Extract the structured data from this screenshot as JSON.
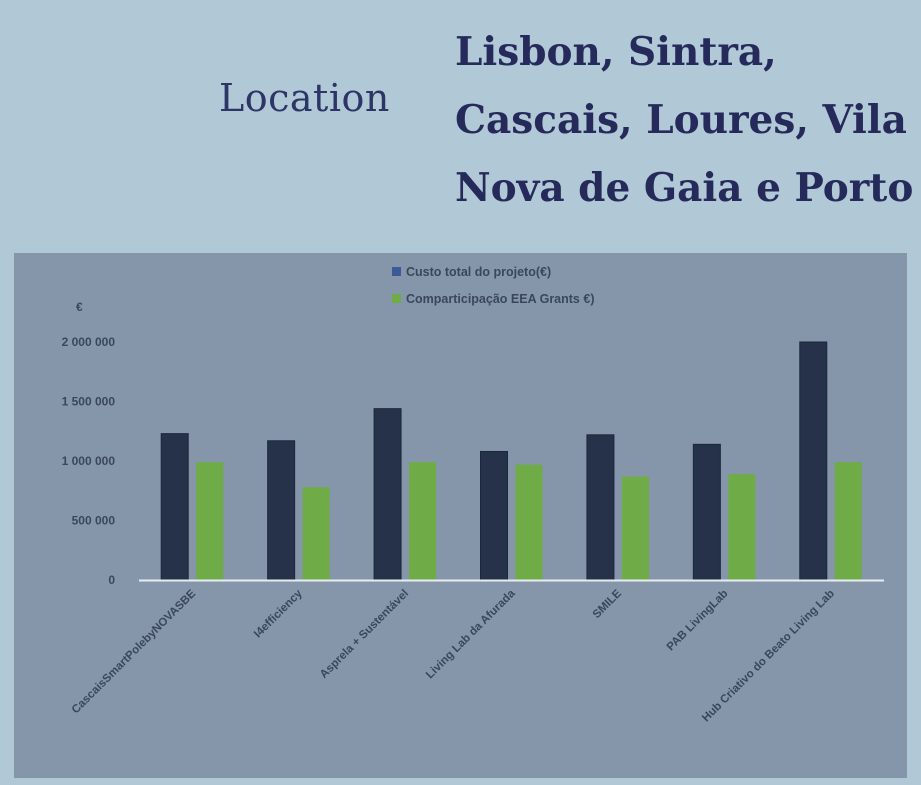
{
  "header": {
    "location_label": "Location",
    "location_lines": [
      "Lisbon, Sintra,",
      "Cascais, Loures, Vila",
      "Nova de Gaia e Porto"
    ]
  },
  "colors": {
    "background": "#b1c8d6",
    "panel": "#8596ab",
    "series_total": "#26324a",
    "series_total_legend": "#3a5a9a",
    "series_grant": "#6fac48",
    "axis": "#e6ecf2",
    "title_text": "#252a5b"
  },
  "chart_data": {
    "type": "bar",
    "unit_label": "€",
    "categories": [
      "CascaisSmartPolebyNOVASBE",
      "I4efficiency",
      "Asprela + Sustentável",
      "Living Lab da Afurada",
      "SMILE",
      "PAB LivingLab",
      "Hub Criativo do Beato Living Lab"
    ],
    "series": [
      {
        "name": "Custo total do projeto(€)",
        "values": [
          1230000,
          1170000,
          1440000,
          1080000,
          1220000,
          1140000,
          2000000
        ]
      },
      {
        "name": "Comparticipação  EEA Grants  €)",
        "values": [
          990000,
          780000,
          990000,
          970000,
          870000,
          890000,
          990000
        ]
      }
    ],
    "y_ticks": [
      0,
      500000,
      1000000,
      1500000,
      2000000
    ],
    "y_tick_labels": [
      "0",
      "500 000",
      "1 000 000",
      "1 500 000",
      "2 000 000"
    ],
    "ylim": [
      0,
      2000000
    ],
    "legend_position": "top-center",
    "grid": false
  }
}
